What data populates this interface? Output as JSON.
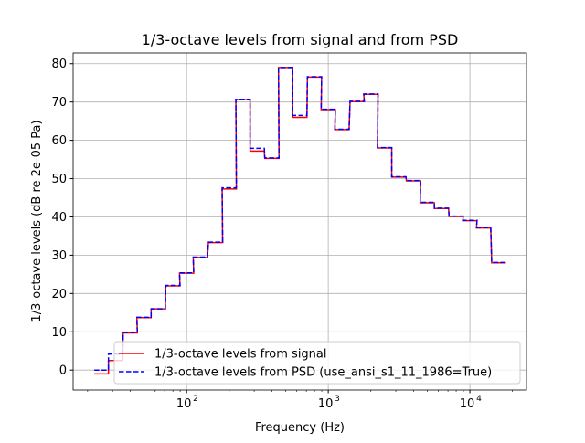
{
  "chart_data": {
    "type": "line",
    "title": "1/3-octave levels from signal and from PSD",
    "xlabel": "Frequency (Hz)",
    "ylabel": "1/3-octave levels (dB re 2e-05 Pa)",
    "xscale": "log",
    "xlim": [
      15.8,
      25100
    ],
    "ylim": [
      -5.2,
      82.8
    ],
    "xticks": [
      {
        "value": 100,
        "base": "10",
        "exp": "2"
      },
      {
        "value": 1000,
        "base": "10",
        "exp": "3"
      },
      {
        "value": 10000,
        "base": "10",
        "exp": "4"
      }
    ],
    "yticks": [
      0,
      10,
      20,
      30,
      40,
      50,
      60,
      70,
      80
    ],
    "grid": true,
    "legend_placement": "lower-right",
    "band_centers_hz": [
      25,
      31.5,
      40,
      50,
      63,
      80,
      100,
      125,
      160,
      200,
      250,
      315,
      400,
      500,
      630,
      800,
      1000,
      1250,
      1600,
      2000,
      2500,
      3150,
      4000,
      5000,
      6300,
      8000,
      10000,
      12500,
      16000
    ],
    "series": [
      {
        "name": "1/3-octave levels from signal",
        "color": "#ff0000",
        "style": "solid",
        "values": [
          -1,
          2.5,
          9.7,
          13.7,
          16,
          22,
          25.3,
          29.4,
          33.3,
          47.3,
          70.6,
          57.2,
          55.3,
          79,
          66,
          76.5,
          68,
          62.8,
          70.1,
          72,
          58,
          50.4,
          49.4,
          43.7,
          42.2,
          40.1,
          39,
          37.1,
          28
        ]
      },
      {
        "name": "1/3-octave levels from PSD (use_ansi_s1_11_1986=True)",
        "color": "#0000ff",
        "style": "dashed",
        "values": [
          0,
          4.2,
          9.8,
          13.8,
          16,
          22.1,
          25.4,
          29.5,
          33.4,
          47.6,
          70.7,
          57.9,
          55.4,
          79,
          66.5,
          76.6,
          68.1,
          62.9,
          70.2,
          72.1,
          58.1,
          50.5,
          49.5,
          43.8,
          42.3,
          40.2,
          39.1,
          37.2,
          28.1
        ]
      }
    ]
  }
}
